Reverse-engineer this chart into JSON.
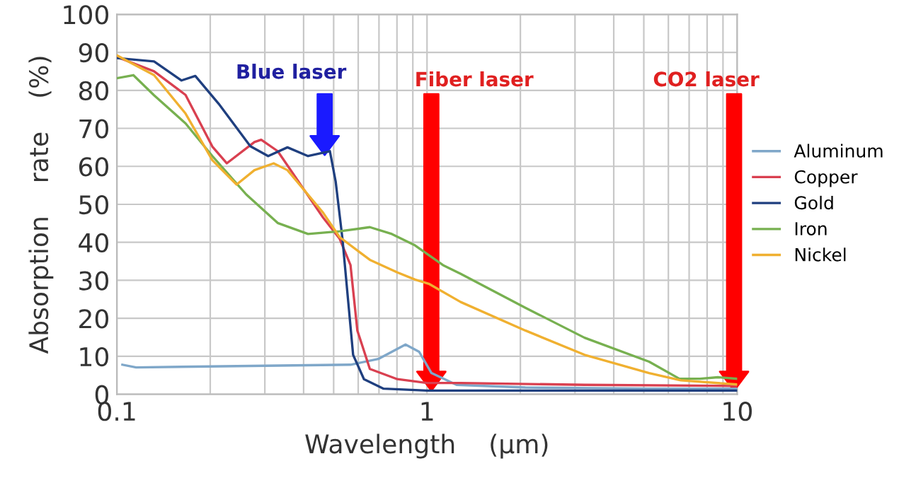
{
  "chart_data": {
    "type": "line",
    "xlabel": "Wavelength    (μm)",
    "ylabel": "Absorption    rate    (%)",
    "log": "x",
    "xlim": [
      0.1,
      10
    ],
    "xticks": [
      0.1,
      1,
      10
    ],
    "ylim": [
      0,
      100
    ],
    "yticks": [
      0,
      10,
      20,
      30,
      40,
      50,
      60,
      70,
      80,
      90,
      100
    ],
    "grid": true,
    "legend": "right",
    "marker": "none",
    "line_style": "solid",
    "series": [
      {
        "name": "Aluminum",
        "color": "#7fa7c9",
        "x": [
          0.1042,
          0.1154,
          0.5666,
          0.6961,
          0.8525,
          0.9432,
          1.0337,
          1.245,
          2.075,
          5.2,
          10
        ],
        "values": [
          7.8,
          7.1,
          7.8,
          9.3,
          13.1,
          11.2,
          5.6,
          2.5,
          1.8,
          1.5,
          1.5
        ]
      },
      {
        "name": "Copper",
        "color": "#d94050",
        "x": [
          0.1,
          0.1318,
          0.1665,
          0.2032,
          0.2261,
          0.2777,
          0.292,
          0.33,
          0.3925,
          0.4624,
          0.5224,
          0.5666,
          0.5961,
          0.6541,
          0.8023,
          1.0,
          1.284,
          3.22,
          10
        ],
        "values": [
          88.8,
          85,
          78.8,
          65.2,
          60.8,
          66.4,
          67,
          64,
          55,
          46.5,
          41,
          34,
          16.8,
          6.7,
          4,
          3,
          3,
          2.5,
          2.2
        ]
      },
      {
        "name": "Gold",
        "color": "#1f3f7f",
        "x": [
          0.1,
          0.1318,
          0.1616,
          0.179,
          0.2128,
          0.2693,
          0.3075,
          0.3548,
          0.4134,
          0.4862,
          0.5075,
          0.5336,
          0.5777,
          0.6261,
          0.7243,
          1.0,
          3.22,
          10
        ],
        "values": [
          88.5,
          87.6,
          82.6,
          83.8,
          76.5,
          65.3,
          62.7,
          65,
          62.7,
          64,
          56,
          41,
          10.4,
          4,
          1.5,
          1,
          1,
          1
        ]
      },
      {
        "name": "Iron",
        "color": "#77b050",
        "x": [
          0.1,
          0.113,
          0.1318,
          0.1665,
          0.2032,
          0.2613,
          0.33,
          0.4134,
          0.5224,
          0.6541,
          0.7701,
          0.915,
          1.1259,
          1.284,
          2.075,
          3.22,
          5.2,
          6.51,
          7.59,
          8.67,
          10
        ],
        "values": [
          83.2,
          84,
          78.7,
          71.3,
          62.7,
          52.6,
          45.1,
          42.2,
          42.9,
          44,
          42.2,
          39.2,
          34,
          31.7,
          22.8,
          14.9,
          8.6,
          4.1,
          4.1,
          4.5,
          4.1
        ]
      },
      {
        "name": "Nickel",
        "color": "#f0b030",
        "x": [
          0.1,
          0.1318,
          0.1665,
          0.2032,
          0.2432,
          0.2777,
          0.3203,
          0.3548,
          0.4624,
          0.5224,
          0.6541,
          0.8023,
          0.915,
          1.013,
          1.284,
          2.075,
          3.22,
          5.2,
          6.58,
          10
        ],
        "values": [
          89.2,
          84,
          73.9,
          61.6,
          55.2,
          59,
          60.8,
          59,
          47.8,
          41.4,
          35.4,
          32.1,
          30.2,
          29.1,
          24.3,
          16.8,
          10.4,
          5.6,
          3.7,
          2.6
        ]
      }
    ],
    "annotations": [
      "Blue laser",
      "Fiber laser",
      "CO2 laser"
    ]
  }
}
